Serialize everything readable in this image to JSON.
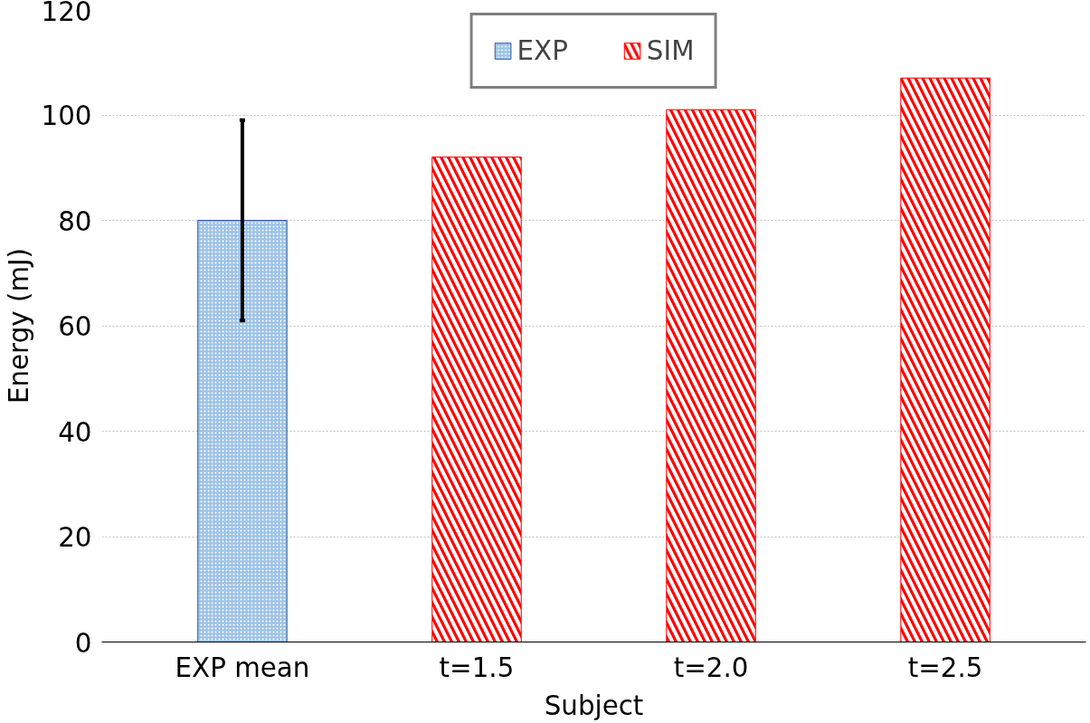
{
  "chart_data": {
    "type": "bar",
    "xlabel": "Subject",
    "ylabel": "Energy (mJ)",
    "categories": [
      "EXP mean",
      "t=1.5",
      "t=2.0",
      "t=2.5"
    ],
    "series": [
      {
        "name": "EXP",
        "color": "#9dc3e6",
        "values": [
          80,
          null,
          null,
          null
        ],
        "errors": [
          19,
          null,
          null,
          null
        ]
      },
      {
        "name": "SIM",
        "color": "#ff0000",
        "values": [
          null,
          92,
          101,
          107
        ]
      }
    ],
    "ylim": [
      0,
      120
    ],
    "yticks": [
      0,
      20,
      40,
      60,
      80,
      100,
      120
    ],
    "grid": "y",
    "legend": "top"
  }
}
